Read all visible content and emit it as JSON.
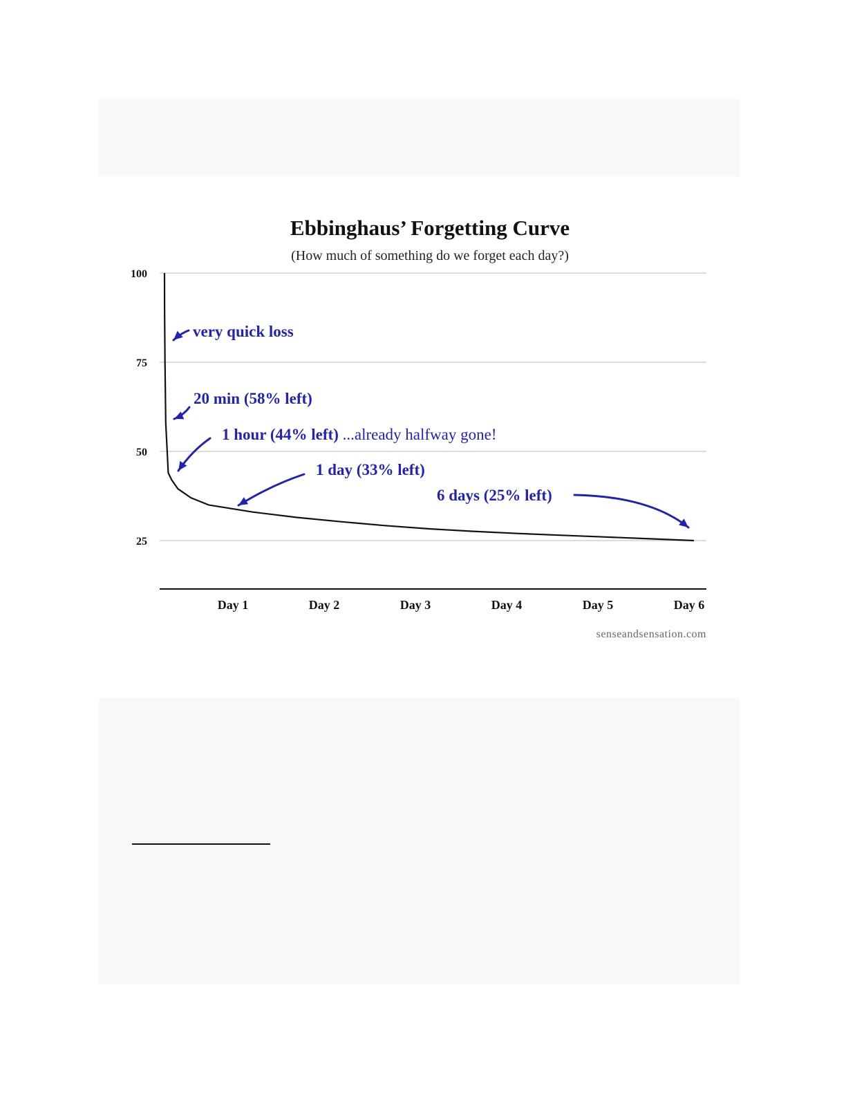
{
  "chart_data": {
    "type": "line",
    "title": "Ebbinghaus’ Forgetting Curve",
    "subtitle": "(How much of something do we forget each day?)",
    "xlabel": "",
    "ylabel": "",
    "x_unit": "days",
    "x_ticks": [
      {
        "label": "Day 1",
        "value": 1
      },
      {
        "label": "Day 2",
        "value": 2
      },
      {
        "label": "Day 3",
        "value": 3
      },
      {
        "label": "Day 4",
        "value": 4
      },
      {
        "label": "Day 5",
        "value": 5
      },
      {
        "label": "Day 6",
        "value": 6
      }
    ],
    "y_ticks": [
      100,
      75,
      50,
      25
    ],
    "xlim": [
      0,
      6
    ],
    "ylim": [
      12,
      100
    ],
    "grid": true,
    "series": [
      {
        "x": [
          0,
          0.001,
          0.005,
          0.0139,
          0.03,
          0.0417,
          0.08,
          0.15,
          0.3,
          0.5,
          0.75,
          1,
          1.5,
          2,
          2.5,
          3,
          3.5,
          4,
          4.5,
          5,
          5.5,
          6
        ],
        "values": [
          100,
          90,
          75,
          58,
          50,
          44,
          42,
          39.5,
          37,
          35,
          34,
          33,
          31.5,
          30.3,
          29.2,
          28.3,
          27.6,
          27,
          26.5,
          26,
          25.5,
          25
        ]
      }
    ],
    "annotations": [
      {
        "id": "quick",
        "bold": "very quick loss",
        "plain": "",
        "arrow_x": 0.0025,
        "arrow_y": 82
      },
      {
        "id": "min20",
        "bold": "20 min (58% left)",
        "plain": "",
        "arrow_x": 0.0139,
        "arrow_y": 60
      },
      {
        "id": "hour1",
        "bold": "1 hour (44% left)",
        "plain": " ...already halfway gone!",
        "arrow_x": 0.15,
        "arrow_y": 45
      },
      {
        "id": "day1",
        "bold": "1 day (33% left)",
        "plain": "",
        "arrow_x": 0.85,
        "arrow_y": 34.5
      },
      {
        "id": "days6",
        "bold": "6 days (25% left)",
        "plain": "",
        "arrow_x": 5.95,
        "arrow_y": 28
      }
    ],
    "colors": {
      "curve": "#111111",
      "annotation": "#2424a6",
      "grid": "#c8c8c8",
      "axis": "#111111"
    }
  },
  "source": "senseandsensation.com"
}
